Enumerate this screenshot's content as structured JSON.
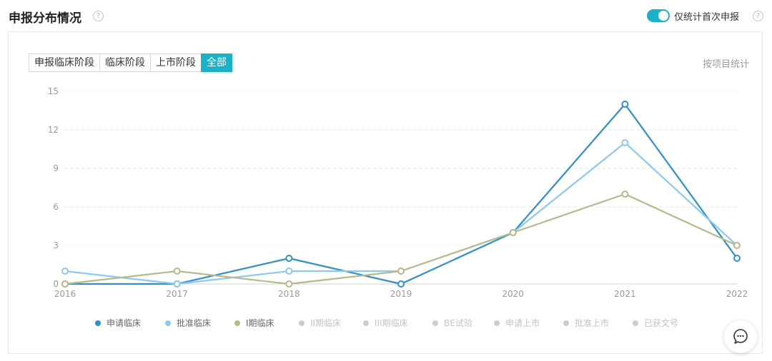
{
  "header": {
    "title": "申报分布情况",
    "toggle_label": "仅统计首次申报",
    "toggle_on": true,
    "help_glyph": "?"
  },
  "tabs": [
    {
      "label": "申报临床阶段",
      "active": false
    },
    {
      "label": "临床阶段",
      "active": false
    },
    {
      "label": "上市阶段",
      "active": false
    },
    {
      "label": "全部",
      "active": true
    }
  ],
  "stat_mode_label": "按项目统计",
  "chart_data": {
    "type": "line",
    "x": [
      "2016",
      "2017",
      "2018",
      "2019",
      "2020",
      "2021",
      "2022"
    ],
    "ylim": [
      0,
      15
    ],
    "yticks": [
      0,
      3,
      6,
      9,
      12,
      15
    ],
    "grid": "horizontal-dashed",
    "legend_position": "bottom",
    "series": [
      {
        "name": "申请临床",
        "color": "#2f8fc9",
        "visible": true,
        "values": [
          0,
          0,
          2,
          0,
          4,
          14,
          2
        ]
      },
      {
        "name": "批准临床",
        "color": "#8cc8f0",
        "visible": true,
        "values": [
          1,
          0,
          1,
          1,
          4,
          11,
          3
        ]
      },
      {
        "name": "I期临床",
        "color": "#b8b98a",
        "visible": true,
        "values": [
          0,
          1,
          0,
          1,
          4,
          7,
          3
        ]
      },
      {
        "name": "II期临床",
        "color": "#cccccc",
        "visible": false
      },
      {
        "name": "III期临床",
        "color": "#cccccc",
        "visible": false
      },
      {
        "name": "BE试验",
        "color": "#cccccc",
        "visible": false
      },
      {
        "name": "申请上市",
        "color": "#cccccc",
        "visible": false
      },
      {
        "name": "批准上市",
        "color": "#cccccc",
        "visible": false
      },
      {
        "name": "已获文号",
        "color": "#cccccc",
        "visible": false
      }
    ]
  },
  "fab_icon": "chat-bubble-icon"
}
